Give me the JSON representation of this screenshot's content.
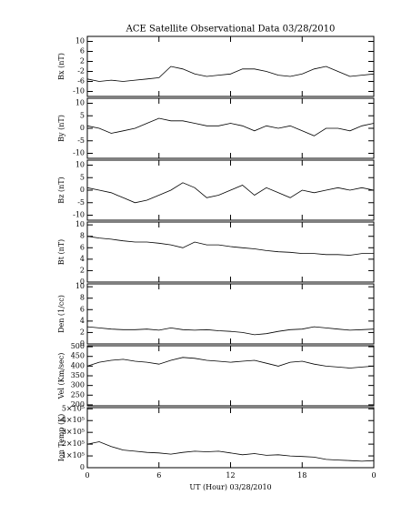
{
  "chart_data": [
    {
      "type": "line",
      "title": "ACE Satellite Observational Data  03/28/2010",
      "ylabel": "Bx (nT)",
      "x": [
        0,
        1,
        2,
        3,
        4,
        5,
        6,
        7,
        8,
        9,
        10,
        11,
        12,
        13,
        14,
        15,
        16,
        17,
        18,
        19,
        20,
        21,
        22,
        23,
        24
      ],
      "xlim": [
        0,
        24
      ],
      "values": [
        -5,
        -6,
        -5.5,
        -6,
        -5.5,
        -5,
        -4.5,
        0,
        -1,
        -3,
        -4,
        -3.5,
        -3,
        -1,
        -1,
        -2,
        -3.5,
        -4,
        -3,
        -1,
        0,
        -2,
        -4,
        -3.5,
        -3
      ],
      "ylim": [
        -12,
        12
      ],
      "yticks": [
        -10,
        -6,
        -2,
        2,
        6,
        10
      ],
      "color": "#000000"
    },
    {
      "type": "line",
      "ylabel": "By (nT)",
      "x": [
        0,
        1,
        2,
        3,
        4,
        5,
        6,
        7,
        8,
        9,
        10,
        11,
        12,
        13,
        14,
        15,
        16,
        17,
        18,
        19,
        20,
        21,
        22,
        23,
        24
      ],
      "xlim": [
        0,
        24
      ],
      "values": [
        1,
        0,
        -2,
        -1,
        0,
        2,
        4,
        3,
        3,
        2,
        1,
        1,
        2,
        1,
        -1,
        1,
        0,
        1,
        -1,
        -3,
        0,
        0,
        -1,
        1,
        2
      ],
      "ylim": [
        -12,
        12
      ],
      "yticks": [
        -10,
        -5,
        0,
        5,
        10
      ],
      "color": "#000000"
    },
    {
      "type": "line",
      "ylabel": "Bz (nT)",
      "x": [
        0,
        1,
        2,
        3,
        4,
        5,
        6,
        7,
        8,
        9,
        10,
        11,
        12,
        13,
        14,
        15,
        16,
        17,
        18,
        19,
        20,
        21,
        22,
        23,
        24
      ],
      "xlim": [
        0,
        24
      ],
      "values": [
        1,
        0,
        -1,
        -3,
        -5,
        -4,
        -2,
        0,
        3,
        1,
        -3,
        -2,
        0,
        2,
        -2,
        1,
        -1,
        -3,
        0,
        -1,
        0,
        1,
        0,
        1,
        0
      ],
      "ylim": [
        -12,
        12
      ],
      "yticks": [
        -10,
        -5,
        0,
        5,
        10
      ],
      "color": "#000000"
    },
    {
      "type": "line",
      "ylabel": "Bt (nT)",
      "x": [
        0,
        1,
        2,
        3,
        4,
        5,
        6,
        7,
        8,
        9,
        10,
        11,
        12,
        13,
        14,
        15,
        16,
        17,
        18,
        19,
        20,
        21,
        22,
        23,
        24
      ],
      "xlim": [
        0,
        24
      ],
      "values": [
        8,
        7.7,
        7.5,
        7.2,
        7,
        7,
        6.8,
        6.5,
        6,
        7,
        6.5,
        6.5,
        6.2,
        6,
        5.8,
        5.5,
        5.3,
        5.2,
        5,
        5,
        4.8,
        4.8,
        4.7,
        5,
        5
      ],
      "ylim": [
        0,
        10.5
      ],
      "yticks": [
        0,
        2,
        4,
        6,
        8,
        10
      ],
      "color": "#000000"
    },
    {
      "type": "line",
      "ylabel": "Den (1/cc)",
      "x": [
        0,
        1,
        2,
        3,
        4,
        5,
        6,
        7,
        8,
        9,
        10,
        11,
        12,
        13,
        14,
        15,
        16,
        17,
        18,
        19,
        20,
        21,
        22,
        23,
        24
      ],
      "xlim": [
        0,
        24
      ],
      "values": [
        3,
        2.8,
        2.6,
        2.5,
        2.5,
        2.6,
        2.4,
        2.8,
        2.5,
        2.4,
        2.5,
        2.3,
        2.2,
        2,
        1.6,
        1.8,
        2.2,
        2.5,
        2.6,
        3,
        2.8,
        2.6,
        2.4,
        2.5,
        2.6
      ],
      "ylim": [
        0,
        10.5
      ],
      "yticks": [
        0,
        2,
        4,
        6,
        8,
        10
      ],
      "color": "#000000"
    },
    {
      "type": "line",
      "ylabel": "Vel (Km/sec)",
      "x": [
        0,
        1,
        2,
        3,
        4,
        5,
        6,
        7,
        8,
        9,
        10,
        11,
        12,
        13,
        14,
        15,
        16,
        17,
        18,
        19,
        20,
        21,
        22,
        23,
        24
      ],
      "xlim": [
        0,
        24
      ],
      "values": [
        400,
        420,
        430,
        435,
        425,
        420,
        410,
        430,
        445,
        440,
        430,
        425,
        420,
        425,
        430,
        415,
        400,
        420,
        425,
        410,
        400,
        395,
        390,
        395,
        400
      ],
      "ylim": [
        195,
        505
      ],
      "yticks": [
        200,
        250,
        300,
        350,
        400,
        450,
        500
      ],
      "color": "#000000"
    },
    {
      "type": "line",
      "ylabel": "Ion Temp (K)",
      "xlabel": "UT (Hour)  03/28/2010",
      "x": [
        0,
        1,
        2,
        3,
        4,
        5,
        6,
        7,
        8,
        9,
        10,
        11,
        12,
        13,
        14,
        15,
        16,
        17,
        18,
        19,
        20,
        21,
        22,
        23,
        24
      ],
      "xlim": [
        0,
        24
      ],
      "xticks": [
        0,
        6,
        12,
        18,
        {
          "value": 24,
          "label": "0"
        }
      ],
      "values": [
        200000,
        220000,
        180000,
        150000,
        140000,
        130000,
        125000,
        115000,
        130000,
        140000,
        135000,
        140000,
        125000,
        110000,
        120000,
        105000,
        110000,
        100000,
        95000,
        90000,
        70000,
        65000,
        60000,
        55000,
        60000
      ],
      "ylim": [
        0,
        510000
      ],
      "yticks": [
        0,
        {
          "value": 100000,
          "label": "1×10⁵"
        },
        {
          "value": 200000,
          "label": "2×10⁵"
        },
        {
          "value": 300000,
          "label": "3×10⁵"
        },
        {
          "value": 400000,
          "label": "4×10⁵"
        },
        {
          "value": 500000,
          "label": "5×10⁵"
        }
      ],
      "color": "#000000"
    }
  ]
}
